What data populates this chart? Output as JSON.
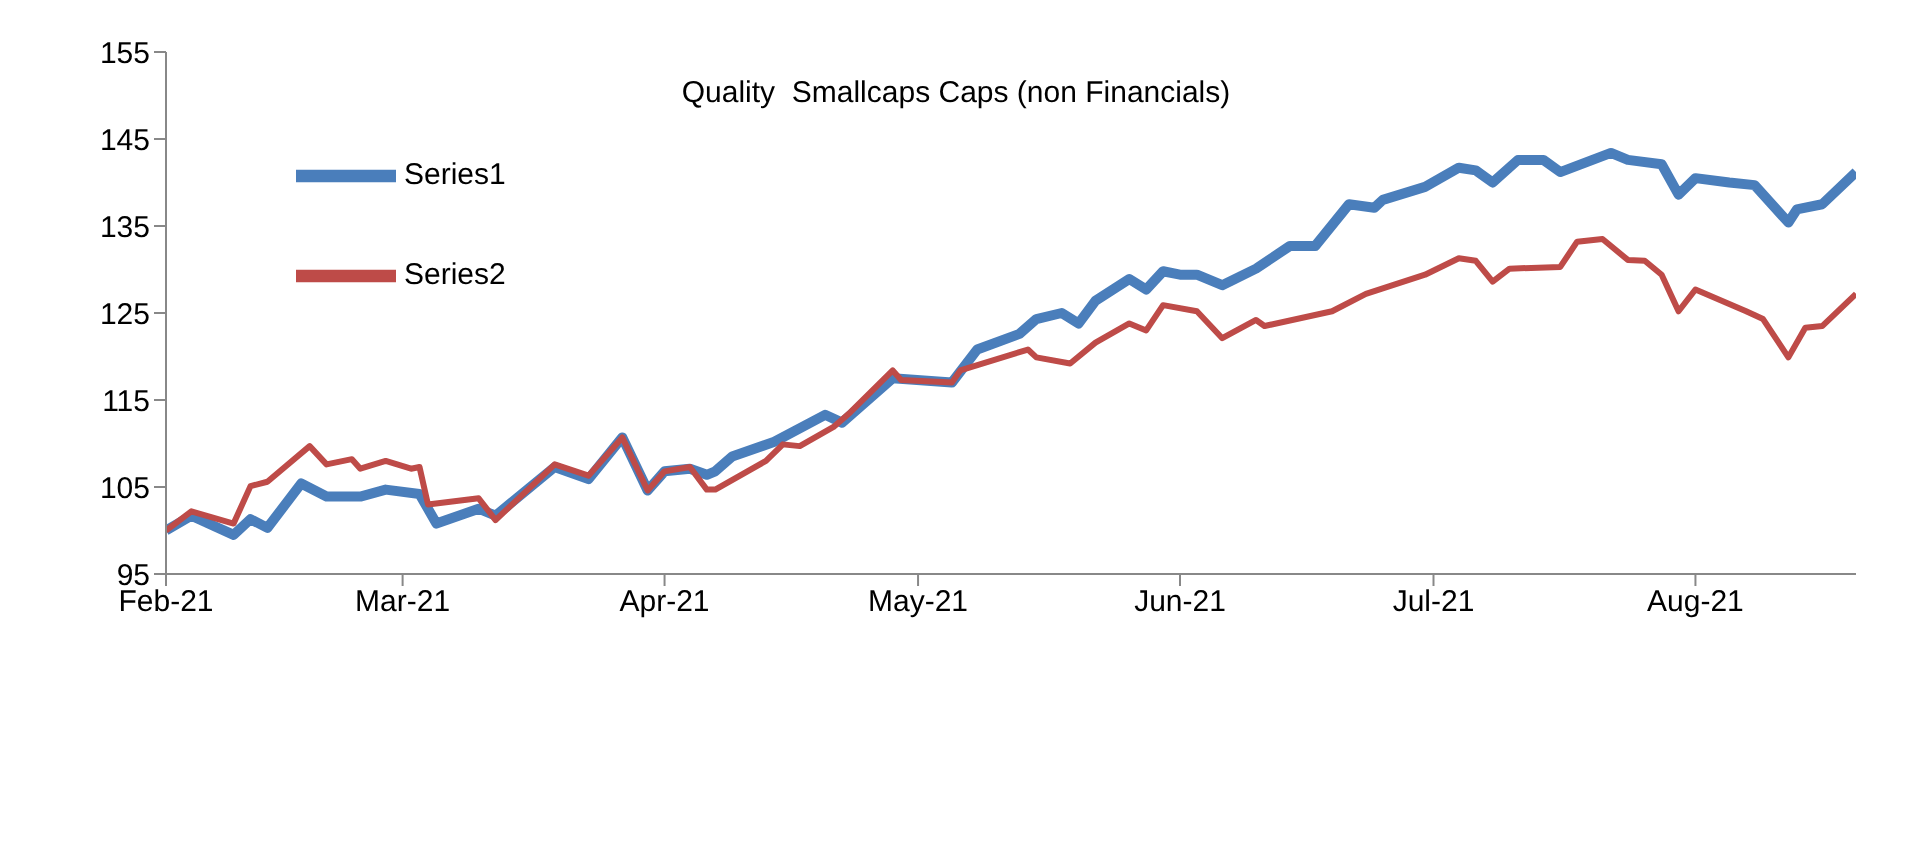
{
  "chart_data": {
    "type": "line",
    "title": "Quality  Smallcaps Caps (non Financials)",
    "xlim": [
      "2021-02-01",
      "2021-08-20"
    ],
    "xticks": [
      {
        "value": "2021-02-01",
        "label": "Feb-21"
      },
      {
        "value": "2021-03-01",
        "label": "Mar-21"
      },
      {
        "value": "2021-04-01",
        "label": "Apr-21"
      },
      {
        "value": "2021-05-01",
        "label": "May-21"
      },
      {
        "value": "2021-06-01",
        "label": "Jun-21"
      },
      {
        "value": "2021-07-01",
        "label": "Jul-21"
      },
      {
        "value": "2021-08-01",
        "label": "Aug-21"
      }
    ],
    "ylim": [
      95,
      155
    ],
    "yticks": [
      95,
      105,
      115,
      125,
      135,
      145,
      155
    ],
    "grid": false,
    "legend": "top left",
    "marker": "none",
    "line_style": "solid",
    "series": [
      {
        "name": "Series1",
        "color": "#4a7ebb",
        "x": [
          "2021-02-01",
          "2021-02-04",
          "2021-02-09",
          "2021-02-11",
          "2021-02-13",
          "2021-02-17",
          "2021-02-20",
          "2021-02-24",
          "2021-02-27",
          "2021-03-03",
          "2021-03-05",
          "2021-03-10",
          "2021-03-12",
          "2021-03-19",
          "2021-03-23",
          "2021-03-27",
          "2021-03-30",
          "2021-04-01",
          "2021-04-04",
          "2021-04-06",
          "2021-04-07",
          "2021-04-09",
          "2021-04-14",
          "2021-04-20",
          "2021-04-22",
          "2021-04-28",
          "2021-05-05",
          "2021-05-08",
          "2021-05-13",
          "2021-05-15",
          "2021-05-18",
          "2021-05-20",
          "2021-05-22",
          "2021-05-26",
          "2021-05-28",
          "2021-05-30",
          "2021-06-01",
          "2021-06-03",
          "2021-06-06",
          "2021-06-10",
          "2021-06-14",
          "2021-06-17",
          "2021-06-21",
          "2021-06-24",
          "2021-06-25",
          "2021-06-30",
          "2021-07-04",
          "2021-07-06",
          "2021-07-08",
          "2021-07-11",
          "2021-07-14",
          "2021-07-16",
          "2021-07-22",
          "2021-07-24",
          "2021-07-28",
          "2021-07-30",
          "2021-08-01",
          "2021-08-05",
          "2021-08-08",
          "2021-08-12",
          "2021-08-13",
          "2021-08-16",
          "2021-08-20"
        ],
        "values": [
          100,
          101.7,
          99.5,
          101.3,
          100.3,
          105.4,
          103.9,
          103.9,
          104.7,
          104.2,
          100.8,
          102.5,
          101.7,
          107.3,
          105.9,
          110.7,
          104.6,
          106.8,
          107.1,
          106.4,
          106.8,
          108.5,
          110.2,
          113.3,
          112.4,
          117.5,
          117,
          120.8,
          122.6,
          124.3,
          125,
          123.8,
          126.4,
          128.9,
          127.7,
          129.8,
          129.4,
          129.4,
          128.2,
          130.1,
          132.7,
          132.7,
          137.5,
          137.1,
          138,
          139.5,
          141.7,
          141.4,
          140,
          142.6,
          142.6,
          141.2,
          143.4,
          142.6,
          142.1,
          138.6,
          140.5,
          140,
          139.7,
          135.4,
          136.9,
          137.5,
          141.2
        ]
      },
      {
        "name": "Series2",
        "color": "#be4b48",
        "x": [
          "2021-02-01",
          "2021-02-04",
          "2021-02-09",
          "2021-02-11",
          "2021-02-13",
          "2021-02-18",
          "2021-02-20",
          "2021-02-23",
          "2021-02-24",
          "2021-02-27",
          "2021-03-02",
          "2021-03-03",
          "2021-03-04",
          "2021-03-10",
          "2021-03-12",
          "2021-03-19",
          "2021-03-23",
          "2021-03-27",
          "2021-03-30",
          "2021-04-01",
          "2021-04-04",
          "2021-04-06",
          "2021-04-07",
          "2021-04-13",
          "2021-04-15",
          "2021-04-17",
          "2021-04-21",
          "2021-04-23",
          "2021-04-28",
          "2021-04-29",
          "2021-05-05",
          "2021-05-06",
          "2021-05-14",
          "2021-05-15",
          "2021-05-19",
          "2021-05-22",
          "2021-05-26",
          "2021-05-28",
          "2021-05-30",
          "2021-06-03",
          "2021-06-06",
          "2021-06-10",
          "2021-06-11",
          "2021-06-19",
          "2021-06-23",
          "2021-06-30",
          "2021-07-04",
          "2021-07-06",
          "2021-07-08",
          "2021-07-10",
          "2021-07-16",
          "2021-07-18",
          "2021-07-21",
          "2021-07-24",
          "2021-07-26",
          "2021-07-28",
          "2021-07-30",
          "2021-08-01",
          "2021-08-07",
          "2021-08-09",
          "2021-08-12",
          "2021-08-14",
          "2021-08-16",
          "2021-08-20"
        ],
        "values": [
          100,
          102.2,
          100.8,
          105.1,
          105.6,
          109.7,
          107.6,
          108.2,
          107.1,
          108,
          107.1,
          107.3,
          103,
          103.7,
          101.2,
          107.6,
          106.3,
          110.7,
          104.6,
          106.8,
          107.3,
          104.7,
          104.7,
          108,
          109.9,
          109.7,
          111.9,
          113.6,
          118.4,
          117.3,
          117,
          118.4,
          120.8,
          119.9,
          119.2,
          121.6,
          123.8,
          123,
          125.9,
          125.2,
          122.1,
          124.2,
          123.5,
          125.2,
          127.2,
          129.4,
          131.3,
          131,
          128.6,
          130.1,
          130.3,
          133.2,
          133.5,
          131.1,
          131,
          129.4,
          125.2,
          127.7,
          125.2,
          124.3,
          119.9,
          123.3,
          123.5,
          127.2
        ]
      }
    ]
  }
}
